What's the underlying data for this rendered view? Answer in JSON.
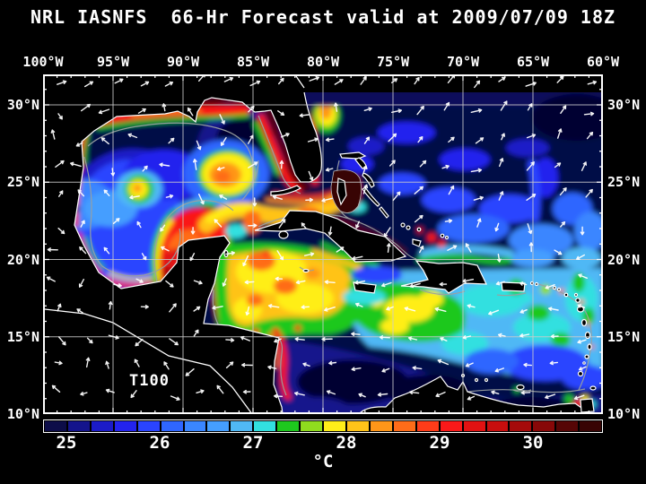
{
  "title": "NRL IASNFS  66-Hr Forecast valid at 2009/07/09 18Z",
  "map": {
    "field_label": "T100",
    "lon_ticks": [
      "100°W",
      "95°W",
      "90°W",
      "85°W",
      "80°W",
      "75°W",
      "70°W",
      "65°W",
      "60°W"
    ],
    "lat_ticks": [
      "30°N",
      "25°N",
      "20°N",
      "15°N",
      "10°N"
    ],
    "colors": {
      "ocean_base": "#000d46",
      "deep_core": "#020530",
      "domain_edge_band": "#0a0a5c",
      "land": "#000000",
      "coastline": "#ffffff",
      "contour": "#9aa0a0",
      "grid": "#cccccc",
      "arrow": "#ffffff"
    }
  },
  "colorbar": {
    "unit": "°C",
    "tick_labels": [
      "25",
      "26",
      "27",
      "28",
      "29",
      "30"
    ],
    "tick_boundary_cells": [
      1,
      5,
      9,
      13,
      17,
      21
    ],
    "cells": [
      "#0d0d49",
      "#14148c",
      "#1b1bc8",
      "#2323ee",
      "#2a44ff",
      "#2f66ff",
      "#3a86ff",
      "#459eff",
      "#50b8f5",
      "#32e0e0",
      "#1ec81e",
      "#90dc1e",
      "#ffee19",
      "#ffc319",
      "#ff9619",
      "#ff6c19",
      "#ff3c19",
      "#fa1919",
      "#e11212",
      "#c80e0e",
      "#a50a0a",
      "#870808",
      "#560505",
      "#380404"
    ]
  },
  "chart_data": {
    "type": "heatmap",
    "title": "NRL IASNFS 66-Hr Forecast valid at 2009/07/09 18Z",
    "field": "T100",
    "unit": "°C",
    "lon_range_deg_w": [
      100,
      60
    ],
    "lat_range_deg_n": [
      10,
      32
    ],
    "colorbar_ticks": [
      25,
      26,
      27,
      28,
      29,
      30
    ],
    "colorbar_cell_count": 24,
    "colorbar_step_c": 0.25,
    "colorbar_range_c": [
      24.75,
      30.75
    ],
    "notable_features": [
      "warm-core eddy near 87.5W 25.5N in Gulf of Mexico (orange core ~29C)",
      "smaller warm eddy near 93.5W 24.5N",
      "warm Campeche Bank and Loop Current / Straits of Florida band (28-29C)",
      "red (>29C) bands along N Gulf shelf, W Florida shelf, E Florida Gulf Stream, Yucatan and Honduras coasts",
      "warm pool (28C) in NW Caribbean south of Cuba",
      "cool (<25C) deep Atlantic, central Gulf and Colombia Basin",
      "white velocity vector arrows over whole domain"
    ]
  }
}
